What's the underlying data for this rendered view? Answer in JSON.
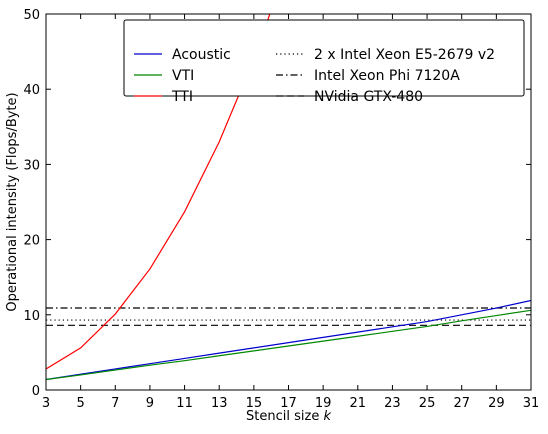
{
  "chart_data": {
    "type": "line",
    "xlabel": "Stencil size",
    "xlabel_var": "k",
    "ylabel": "Operational intensity (Flops/Byte)",
    "xlim": [
      3,
      31
    ],
    "ylim": [
      0,
      50
    ],
    "x_ticks": [
      3,
      5,
      7,
      9,
      11,
      13,
      15,
      17,
      19,
      21,
      23,
      25,
      27,
      29,
      31
    ],
    "y_ticks": [
      0,
      10,
      20,
      30,
      40,
      50
    ],
    "legend_position": "top-right",
    "series": [
      {
        "name": "Acoustic",
        "color": "#0000cc",
        "style": "solid",
        "x": [
          3,
          5,
          7,
          9,
          11,
          13,
          15,
          17,
          19,
          21,
          23,
          25,
          27,
          29,
          31
        ],
        "y": [
          1.4,
          2.1,
          2.8,
          3.5,
          4.2,
          4.9,
          5.6,
          6.3,
          7.0,
          7.7,
          8.4,
          9.1,
          10.0,
          10.9,
          11.9
        ]
      },
      {
        "name": "VTI",
        "color": "#008800",
        "style": "solid",
        "x": [
          3,
          5,
          7,
          9,
          11,
          13,
          15,
          17,
          19,
          21,
          23,
          25,
          27,
          29,
          31
        ],
        "y": [
          1.4,
          2.0,
          2.65,
          3.3,
          3.9,
          4.55,
          5.2,
          5.85,
          6.5,
          7.15,
          7.8,
          8.45,
          9.2,
          9.9,
          10.6
        ]
      },
      {
        "name": "TTI",
        "color": "#ff0000",
        "style": "solid",
        "x": [
          3,
          5,
          7,
          9,
          11,
          13,
          15,
          16
        ],
        "y": [
          2.8,
          5.6,
          10.1,
          16.1,
          23.7,
          33.0,
          44.0,
          50.5
        ]
      }
    ],
    "reference_lines": [
      {
        "name": "2 x Intel Xeon E5-2679 v2",
        "style": "dotted",
        "color": "#000000",
        "y": 9.3
      },
      {
        "name": "Intel Xeon Phi 7120A",
        "style": "dashdot",
        "color": "#000000",
        "y": 10.9
      },
      {
        "name": "NVidia GTX-480",
        "style": "dashed",
        "color": "#000000",
        "y": 8.6
      }
    ]
  }
}
